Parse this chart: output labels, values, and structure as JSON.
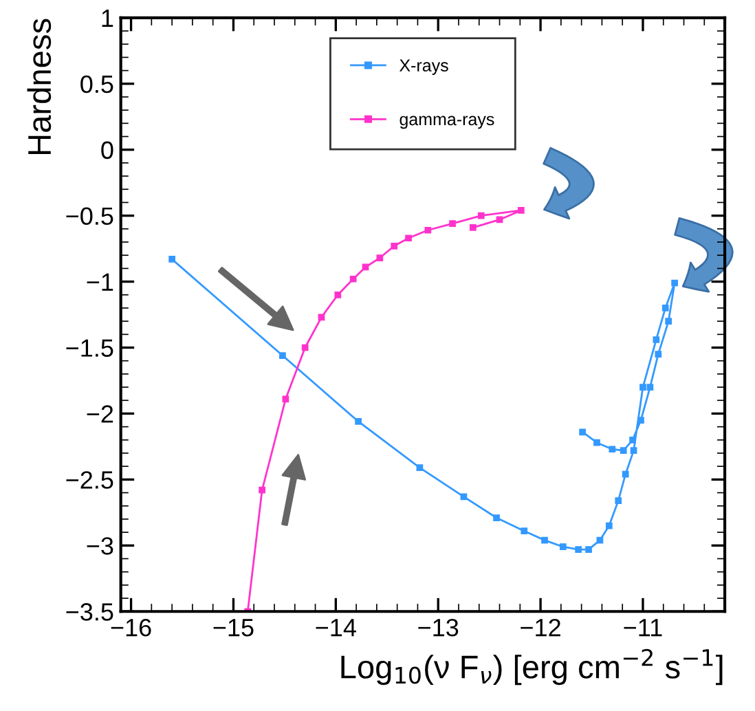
{
  "chart_data": {
    "type": "line",
    "xlabel": "Log$_{10}$(ν F$_{ν}$) [erg cm$^{−2}$ s$^{−1}$]",
    "ylabel": "Hardness",
    "series": [
      {
        "name": "X-rays",
        "color": "#3399ff",
        "x": [
          -15.6,
          -14.52,
          -13.78,
          -13.18,
          -12.75,
          -12.43,
          -12.16,
          -11.96,
          -11.78,
          -11.63,
          -11.53,
          -11.42,
          -11.33,
          -11.24,
          -11.17,
          -11.09,
          -11.0,
          -10.87,
          -10.78,
          -10.69,
          -10.75,
          -10.85,
          -10.93,
          -11.02,
          -11.1,
          -11.19,
          -11.3,
          -11.45,
          -11.59
        ],
        "values": [
          -0.83,
          -1.56,
          -2.06,
          -2.41,
          -2.63,
          -2.79,
          -2.89,
          -2.96,
          -3.01,
          -3.03,
          -3.03,
          -2.96,
          -2.85,
          -2.66,
          -2.46,
          -2.28,
          -1.8,
          -1.44,
          -1.2,
          -1.01,
          -1.3,
          -1.55,
          -1.8,
          -2.05,
          -2.2,
          -2.28,
          -2.27,
          -2.22,
          -2.14
        ]
      },
      {
        "name": "gamma-rays",
        "color": "#ff33cc",
        "x": [
          -14.86,
          -14.72,
          -14.49,
          -14.3,
          -14.14,
          -13.98,
          -13.83,
          -13.71,
          -13.57,
          -13.43,
          -13.29,
          -13.1,
          -12.86,
          -12.58,
          -12.19,
          -12.4,
          -12.66
        ],
        "values": [
          -3.5,
          -2.58,
          -1.89,
          -1.5,
          -1.27,
          -1.1,
          -0.98,
          -0.89,
          -0.82,
          -0.73,
          -0.67,
          -0.61,
          -0.56,
          -0.5,
          -0.46,
          -0.53,
          -0.59
        ]
      }
    ],
    "xlim": [
      -16.1,
      -10.2
    ],
    "ylim": [
      -3.5,
      1
    ],
    "xticks": [
      -16,
      -15,
      -14,
      -13,
      -12,
      -11
    ],
    "yticks": [
      -3.5,
      -3,
      -2.5,
      -2,
      -1.5,
      -1,
      -0.5,
      0,
      0.5,
      1
    ],
    "marker": "square",
    "line_style": "solid",
    "grid": false,
    "legend": "top"
  }
}
